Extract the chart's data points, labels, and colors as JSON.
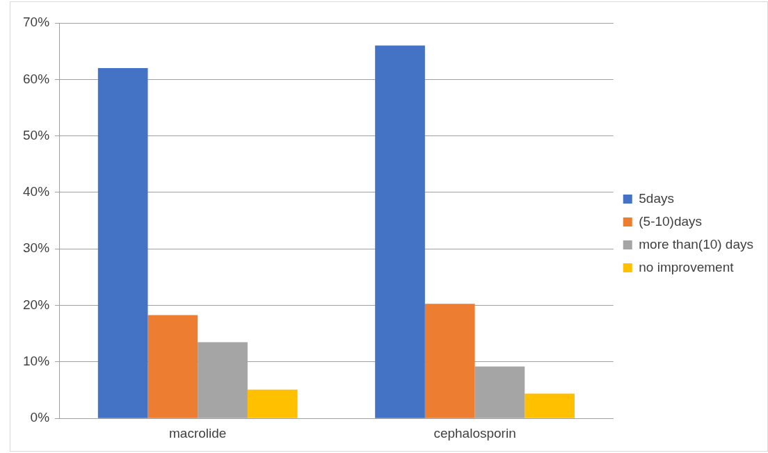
{
  "chart_data": {
    "type": "bar",
    "categories": [
      "macrolide",
      "cephalosporin"
    ],
    "series": [
      {
        "name": "5days",
        "color": "#4472c4",
        "values": [
          62,
          66
        ]
      },
      {
        "name": "(5-10)days",
        "color": "#ed7d31",
        "values": [
          18.3,
          20.3
        ]
      },
      {
        "name": "more than(10) days",
        "color": "#a5a5a5",
        "values": [
          13.5,
          9.2
        ]
      },
      {
        "name": "no improvement",
        "color": "#ffc000",
        "values": [
          5.1,
          4.4
        ]
      }
    ],
    "ylim": [
      0,
      70
    ],
    "yticks": [
      {
        "value": 0,
        "label": "0%"
      },
      {
        "value": 10,
        "label": "10%"
      },
      {
        "value": 20,
        "label": "20%"
      },
      {
        "value": 30,
        "label": "30%"
      },
      {
        "value": 40,
        "label": "40%"
      },
      {
        "value": 50,
        "label": "50%"
      },
      {
        "value": 60,
        "label": "60%"
      },
      {
        "value": 70,
        "label": "70%"
      }
    ],
    "grid": "y",
    "legend": "right"
  }
}
